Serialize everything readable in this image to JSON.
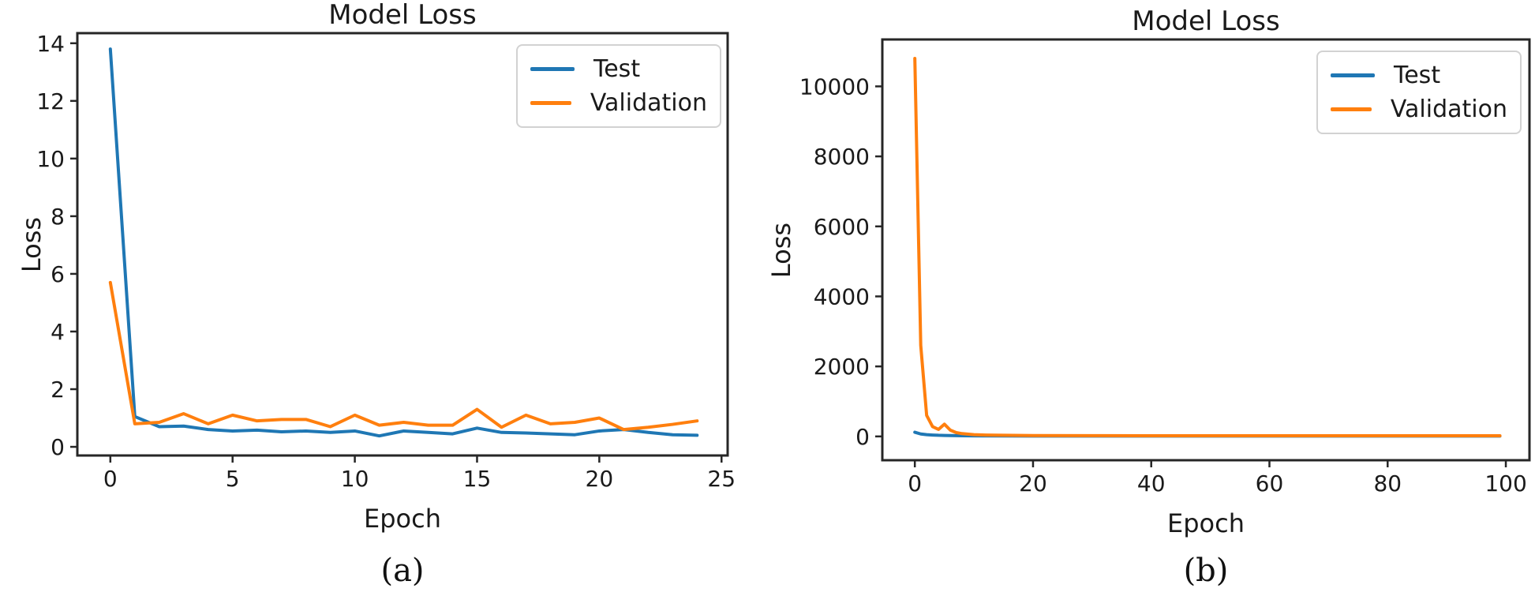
{
  "figure": {
    "background": "#ffffff"
  },
  "colors": {
    "test": "#1f77b4",
    "validation": "#ff7f0e",
    "axis": "#262626",
    "text": "#1a1a1a",
    "legend_border": "#d2d2d2"
  },
  "chart_data": [
    {
      "type": "line",
      "title": "Model Loss",
      "xlabel": "Epoch",
      "ylabel": "Loss",
      "caption": "(a)",
      "grid": false,
      "legend": {
        "position": "upper-right",
        "entries": [
          "Test",
          "Validation"
        ]
      },
      "xlim": [
        -1.35,
        25.25
      ],
      "ylim": [
        -0.3,
        14.35
      ],
      "xticks": [
        0,
        5,
        10,
        15,
        20,
        25
      ],
      "yticks": [
        0,
        2,
        4,
        6,
        8,
        10,
        12,
        14
      ],
      "series": [
        {
          "name": "Test",
          "color": "#1f77b4",
          "x": [
            0,
            1,
            2,
            3,
            4,
            5,
            6,
            7,
            8,
            9,
            10,
            11,
            12,
            13,
            14,
            15,
            16,
            17,
            18,
            19,
            20,
            21,
            22,
            23,
            24
          ],
          "y": [
            13.8,
            1.05,
            0.7,
            0.72,
            0.6,
            0.55,
            0.58,
            0.52,
            0.55,
            0.5,
            0.55,
            0.38,
            0.55,
            0.5,
            0.45,
            0.65,
            0.5,
            0.48,
            0.45,
            0.42,
            0.55,
            0.6,
            0.5,
            0.42,
            0.4
          ]
        },
        {
          "name": "Validation",
          "color": "#ff7f0e",
          "x": [
            0,
            1,
            2,
            3,
            4,
            5,
            6,
            7,
            8,
            9,
            10,
            11,
            12,
            13,
            14,
            15,
            16,
            17,
            18,
            19,
            20,
            21,
            22,
            23,
            24
          ],
          "y": [
            5.7,
            0.8,
            0.85,
            1.15,
            0.8,
            1.1,
            0.9,
            0.95,
            0.95,
            0.7,
            1.1,
            0.75,
            0.85,
            0.75,
            0.75,
            1.3,
            0.68,
            1.1,
            0.8,
            0.85,
            1.0,
            0.6,
            0.68,
            0.78,
            0.9
          ]
        }
      ]
    },
    {
      "type": "line",
      "title": "Model Loss",
      "xlabel": "Epoch",
      "ylabel": "Loss",
      "caption": "(b)",
      "grid": false,
      "legend": {
        "position": "upper-right",
        "entries": [
          "Test",
          "Validation"
        ]
      },
      "xlim": [
        -5.5,
        104
      ],
      "ylim": [
        -680,
        11340
      ],
      "xticks": [
        0,
        20,
        40,
        60,
        80,
        100
      ],
      "yticks": [
        0,
        2000,
        4000,
        6000,
        8000,
        10000
      ],
      "series": [
        {
          "name": "Test",
          "color": "#1f77b4",
          "x": [
            0,
            1,
            2,
            3,
            4,
            5,
            6,
            8,
            10,
            15,
            20,
            30,
            40,
            50,
            60,
            70,
            80,
            90,
            99
          ],
          "y": [
            120,
            70,
            50,
            40,
            32,
            28,
            25,
            20,
            16,
            13,
            12,
            10,
            10,
            10,
            10,
            10,
            10,
            10,
            10
          ]
        },
        {
          "name": "Validation",
          "color": "#ff7f0e",
          "x": [
            0,
            1,
            2,
            3,
            4,
            5,
            6,
            7,
            8,
            10,
            12,
            15,
            20,
            30,
            40,
            50,
            60,
            70,
            80,
            90,
            99
          ],
          "y": [
            10800,
            2600,
            600,
            280,
            200,
            350,
            180,
            110,
            80,
            50,
            40,
            32,
            26,
            22,
            20,
            20,
            20,
            20,
            20,
            20,
            20
          ]
        }
      ]
    }
  ]
}
